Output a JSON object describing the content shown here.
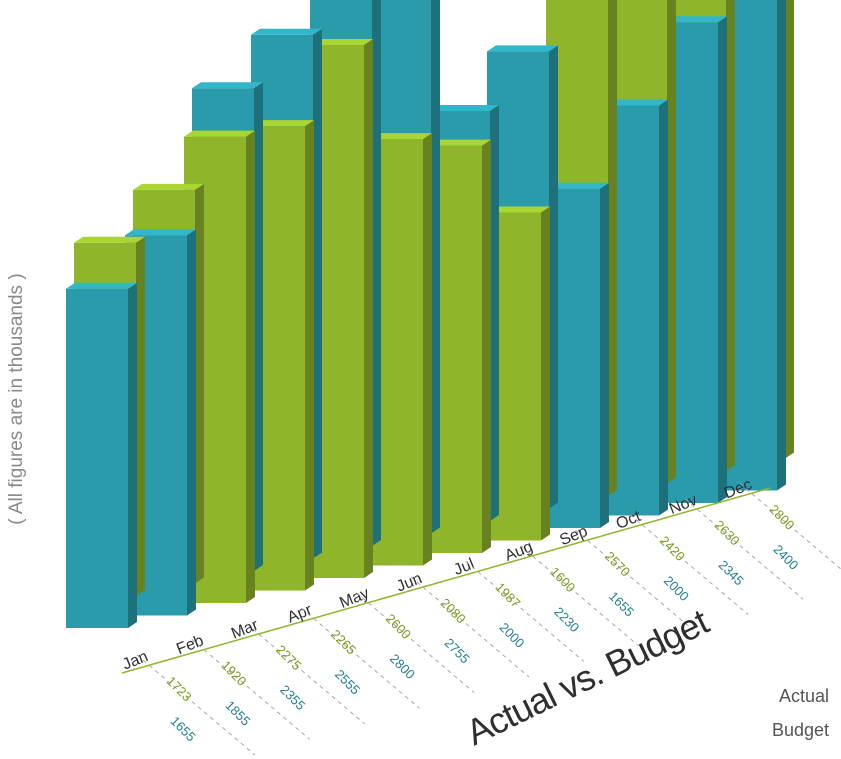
{
  "chart_data": {
    "type": "bar",
    "title": "Actual vs. Budget",
    "ylabel": "( All figures are in thousands )",
    "categories": [
      "Jan",
      "Feb",
      "Mar",
      "Apr",
      "May",
      "Jun",
      "Jul",
      "Aug",
      "Sep",
      "Oct",
      "Nov",
      "Dec"
    ],
    "series": [
      {
        "name": "Actual",
        "color": "#8fb52b",
        "values": [
          1723,
          1920,
          2275,
          2265,
          2600,
          2080,
          1987,
          1600,
          2570,
          2420,
          2630,
          2800
        ]
      },
      {
        "name": "Budget",
        "color": "#2a9bab",
        "values": [
          1655,
          1855,
          2355,
          2555,
          2800,
          2755,
          2000,
          2230,
          1655,
          2000,
          2345,
          2400
        ]
      }
    ],
    "legend_position": "bottom-right",
    "grid": false
  }
}
